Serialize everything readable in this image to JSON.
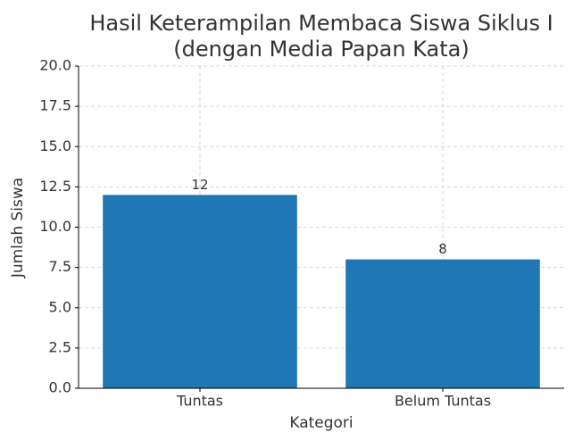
{
  "chart_data": {
    "type": "bar",
    "title": [
      "Hasil Keterampilan Membaca Siswa Siklus I",
      "(dengan Media Papan Kata)"
    ],
    "x_label": "Kategori",
    "y_label": "Jumlah Siswa",
    "categories": [
      "Tuntas",
      "Belum Tuntas"
    ],
    "values": [
      12,
      8
    ],
    "color": "#1f77b4",
    "ylim": [
      0,
      20
    ],
    "yticks": [
      {
        "value": 0,
        "label": "0.0"
      },
      2.5,
      {
        "value": 5,
        "label": "5.0"
      },
      7.5,
      {
        "value": 10,
        "label": "10.0"
      },
      12.5,
      {
        "value": 15,
        "label": "15.0"
      },
      17.5,
      {
        "value": 20,
        "label": "20.0"
      }
    ],
    "grid": true
  }
}
